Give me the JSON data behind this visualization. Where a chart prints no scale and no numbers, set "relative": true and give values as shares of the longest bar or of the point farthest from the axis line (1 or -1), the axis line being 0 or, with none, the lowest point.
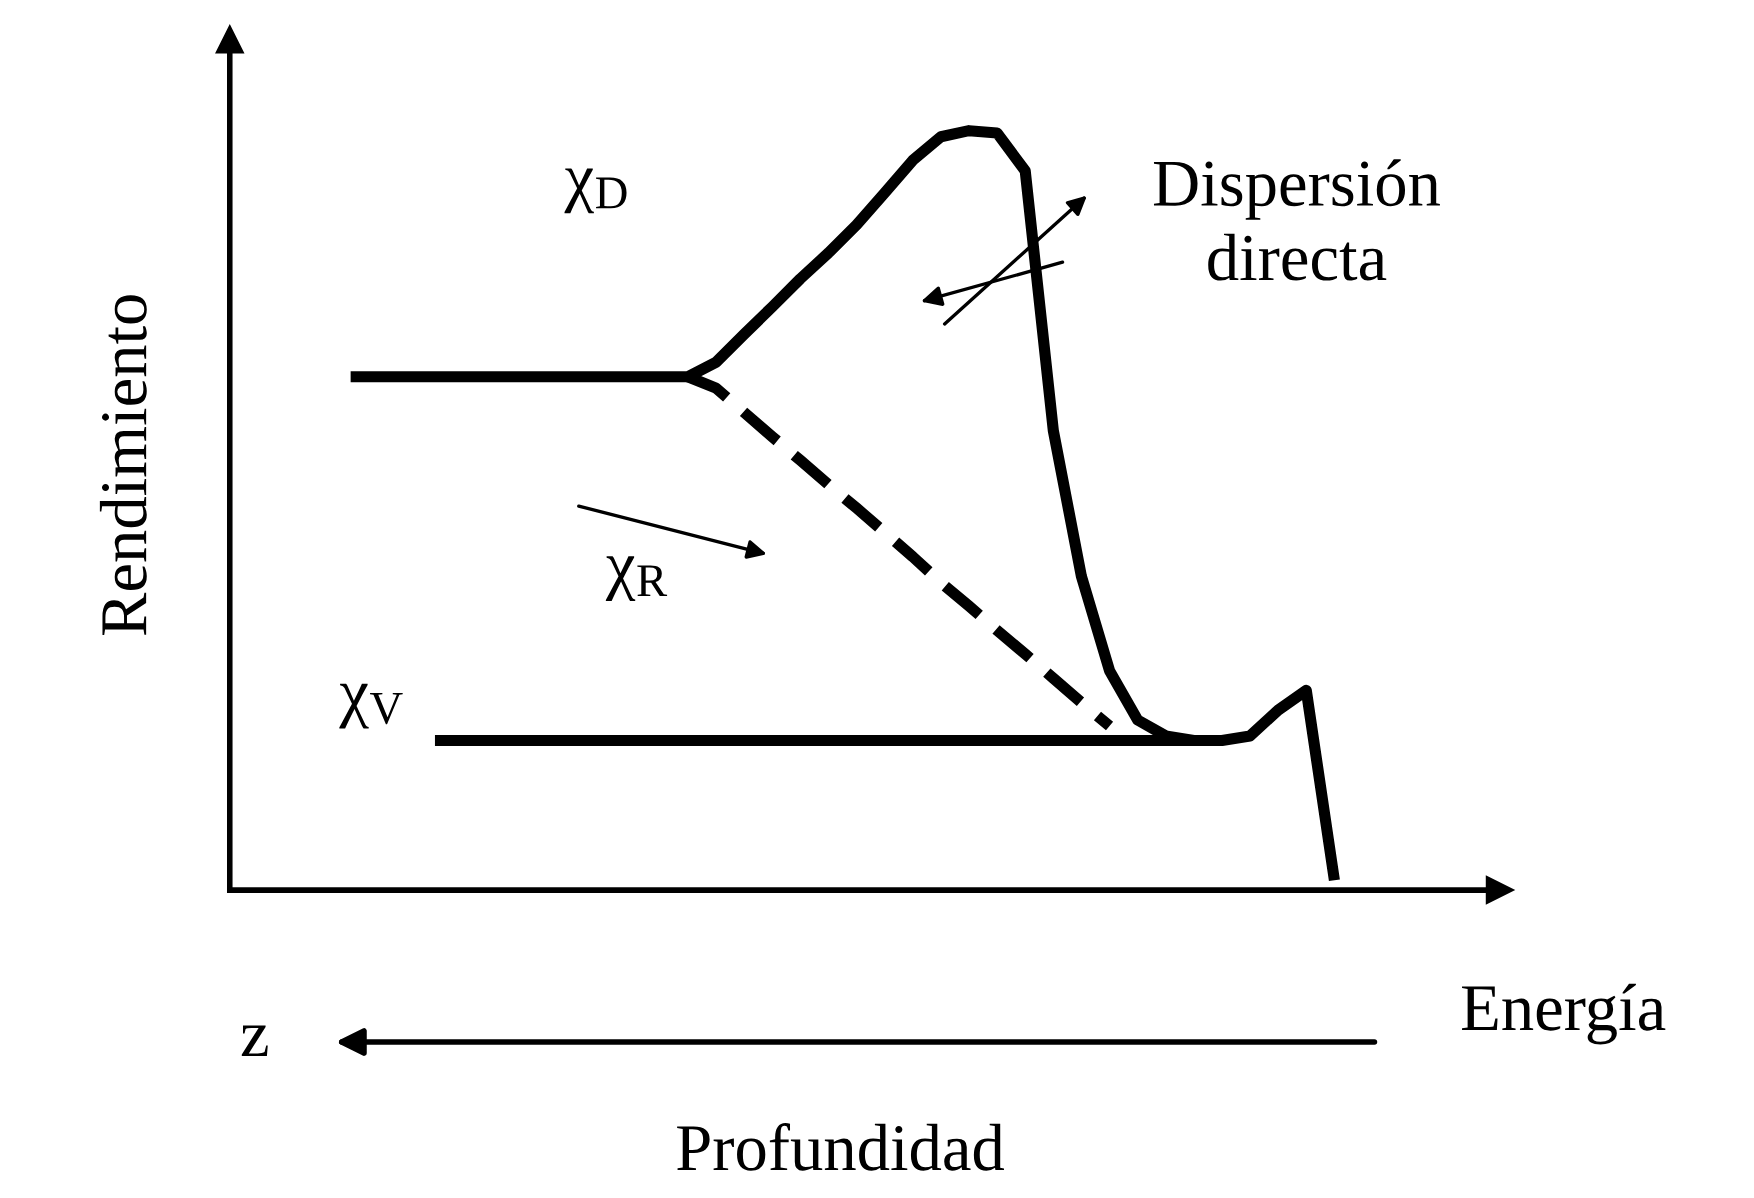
{
  "chart_data": {
    "type": "line",
    "relative": true,
    "xlabel": "Energía",
    "ylabel": "Rendimiento",
    "categories": [
      null,
      null,
      null,
      null,
      null,
      null,
      null,
      null,
      null,
      null,
      null,
      null,
      null,
      null,
      null,
      null,
      null,
      null,
      null,
      null,
      null,
      null,
      null,
      null,
      null,
      null,
      null,
      null,
      null,
      null,
      null,
      null,
      null,
      null,
      null,
      null
    ],
    "series": [
      {
        "name": "χ$_{D}$",
        "color": "#000000",
        "line_style": "solid",
        "values": [
          0.676,
          0.676,
          0.676,
          0.676,
          0.676,
          0.676,
          0.676,
          0.676,
          0.676,
          0.676,
          0.676,
          0.676,
          0.676,
          0.695,
          0.732,
          0.768,
          0.805,
          0.839,
          0.876,
          0.918,
          0.961,
          0.992,
          1.0,
          0.997,
          0.947,
          0.605,
          0.413,
          0.289,
          0.224,
          0.203,
          0.197,
          0.197,
          0.203,
          0.237,
          0.263,
          0.013
        ]
      },
      {
        "name": "χ$_{R}$",
        "color": "#000000",
        "line_style": "dashed",
        "values": [
          null,
          null,
          null,
          null,
          null,
          null,
          null,
          null,
          null,
          null,
          null,
          null,
          0.676,
          0.661,
          0.629,
          0.597,
          0.566,
          0.534,
          0.503,
          0.471,
          0.439,
          0.405,
          0.374,
          0.342,
          0.311,
          0.279,
          0.247,
          0.216,
          null,
          null,
          null,
          null,
          null,
          null,
          null,
          null
        ]
      },
      {
        "name": "χ$_{V}$",
        "color": "#000000",
        "line_style": "solid",
        "values": [
          null,
          null,
          null,
          0.197,
          0.197,
          0.197,
          0.197,
          0.197,
          0.197,
          0.197,
          0.197,
          0.197,
          0.197,
          0.197,
          0.197,
          0.197,
          0.197,
          0.197,
          0.197,
          0.197,
          0.197,
          0.197,
          0.197,
          0.197,
          0.197,
          0.197,
          0.197,
          0.197,
          0.197,
          0.197,
          0.197,
          null,
          null,
          null,
          null,
          null
        ]
      }
    ],
    "annotations": [
      "Dispersión\ndirecta",
      "z",
      "Profundidad"
    ]
  }
}
